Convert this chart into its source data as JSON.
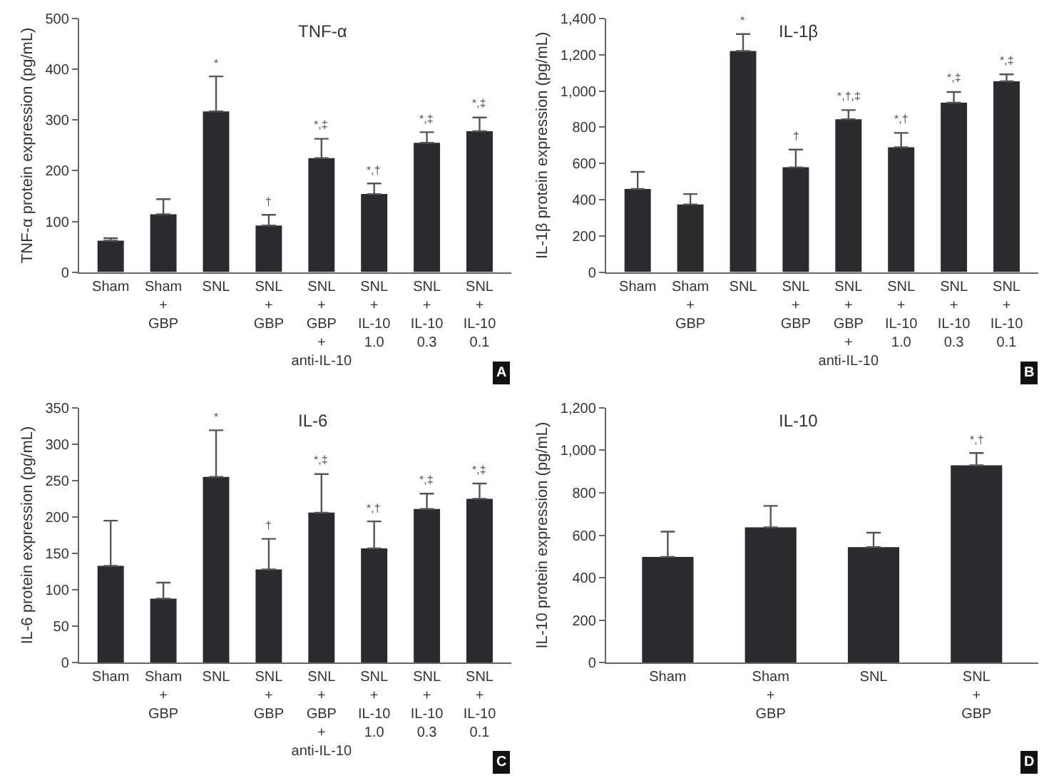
{
  "chart_data": [
    {
      "type": "bar",
      "title": "TNF-α",
      "ylabel": "TNF-α protein expression (pg/mL)",
      "categories": [
        "Sham",
        "Sham\n+\nGBP",
        "SNL",
        "SNL\n+\nGBP",
        "SNL\n+\nGBP\n+\nanti-IL-10",
        "SNL\n+\nIL-10\n1.0",
        "SNL\n+\nIL-10\n0.3",
        "SNL\n+\nIL-10\n0.1"
      ],
      "color": "#2b2b2e",
      "values": [
        62,
        114,
        317,
        92,
        225,
        154,
        255,
        278
      ],
      "errors": [
        [
          62,
          67
        ],
        [
          114,
          144
        ],
        [
          317,
          386
        ],
        [
          92,
          113
        ],
        [
          225,
          263
        ],
        [
          154,
          175
        ],
        [
          255,
          276
        ],
        [
          278,
          305
        ]
      ],
      "ylim": [
        0,
        500
      ],
      "yticks": [
        0,
        100,
        200,
        300,
        400,
        500
      ],
      "annotations": [
        "A",
        {
          "text": "*",
          "x": "SNL",
          "y": 386
        },
        {
          "text": "†",
          "x": "SNL\n+\nGBP",
          "y": 113
        },
        {
          "text": "*,‡",
          "x": "SNL\n+\nGBP\n+\nanti-IL-10",
          "y": 263
        },
        {
          "text": "*,†",
          "x": "SNL\n+\nIL-10\n1.0",
          "y": 175
        },
        {
          "text": "*,‡",
          "x": "SNL\n+\nIL-10\n0.3",
          "y": 276
        },
        {
          "text": "*,‡",
          "x": "SNL\n+\nIL-10\n0.1",
          "y": 305
        }
      ]
    },
    {
      "type": "bar",
      "title": "IL-1β",
      "ylabel": "IL-1β protein expression (pg/mL)",
      "categories": [
        "Sham",
        "Sham\n+\nGBP",
        "SNL",
        "SNL\n+\nGBP",
        "SNL\n+\nGBP\n+\nanti-IL-10",
        "SNL\n+\nIL-10\n1.0",
        "SNL\n+\nIL-10\n0.3",
        "SNL\n+\nIL-10\n0.1"
      ],
      "color": "#2b2b2e",
      "values": [
        459,
        374,
        1221,
        579,
        844,
        690,
        936,
        1054
      ],
      "errors": [
        [
          459,
          554
        ],
        [
          374,
          431
        ],
        [
          1221,
          1315
        ],
        [
          579,
          677
        ],
        [
          844,
          895
        ],
        [
          690,
          769
        ],
        [
          936,
          995
        ],
        [
          1054,
          1092
        ]
      ],
      "ylim": [
        0,
        1400
      ],
      "yticks": [
        0,
        200,
        400,
        600,
        800,
        {
          "value": 1000,
          "label": "1,000"
        },
        {
          "value": 1200,
          "label": "1,200"
        },
        {
          "value": 1400,
          "label": "1,400"
        }
      ],
      "annotations": [
        "B",
        {
          "text": "*",
          "x": "SNL",
          "y": 1315
        },
        {
          "text": "†",
          "x": "SNL\n+\nGBP",
          "y": 677
        },
        {
          "text": "*,†,‡",
          "x": "SNL\n+\nGBP\n+\nanti-IL-10",
          "y": 895
        },
        {
          "text": "*,†",
          "x": "SNL\n+\nIL-10\n1.0",
          "y": 769
        },
        {
          "text": "*,‡",
          "x": "SNL\n+\nIL-10\n0.3",
          "y": 995
        },
        {
          "text": "*,‡",
          "x": "SNL\n+\nIL-10\n0.1",
          "y": 1092
        }
      ]
    },
    {
      "type": "bar",
      "title": "IL-6",
      "ylabel": "IL-6 protein expression (pg/mL)",
      "categories": [
        "Sham",
        "Sham\n+\nGBP",
        "SNL",
        "SNL\n+\nGBP",
        "SNL\n+\nGBP\n+\nanti-IL-10",
        "SNL\n+\nIL-10\n1.0",
        "SNL\n+\nIL-10\n0.3",
        "SNL\n+\nIL-10\n0.1"
      ],
      "color": "#2b2b2e",
      "values": [
        133,
        88,
        255,
        128,
        206,
        157,
        211,
        225
      ],
      "errors": [
        [
          133,
          195
        ],
        [
          88,
          110
        ],
        [
          255,
          319
        ],
        [
          128,
          170
        ],
        [
          206,
          259
        ],
        [
          157,
          194
        ],
        [
          211,
          232
        ],
        [
          225,
          246
        ]
      ],
      "ylim": [
        0,
        350
      ],
      "yticks": [
        0,
        50,
        100,
        150,
        200,
        250,
        300,
        350
      ],
      "annotations": [
        "C",
        {
          "text": "*",
          "x": "SNL",
          "y": 319
        },
        {
          "text": "†",
          "x": "SNL\n+\nGBP",
          "y": 170
        },
        {
          "text": "*,‡",
          "x": "SNL\n+\nGBP\n+\nanti-IL-10",
          "y": 259
        },
        {
          "text": "*,†",
          "x": "SNL\n+\nIL-10\n1.0",
          "y": 194
        },
        {
          "text": "*,‡",
          "x": "SNL\n+\nIL-10\n0.3",
          "y": 232
        },
        {
          "text": "*,‡",
          "x": "SNL\n+\nIL-10\n0.1",
          "y": 246
        }
      ]
    },
    {
      "type": "bar",
      "title": "IL-10",
      "ylabel": "IL-10 protein expression (pg/mL)",
      "categories": [
        "Sham",
        "Sham\n+\nGBP",
        "SNL",
        "SNL\n+\nGBP"
      ],
      "color": "#2b2b2e",
      "values": [
        498,
        637,
        544,
        929
      ],
      "errors": [
        [
          498,
          617
        ],
        [
          637,
          738
        ],
        [
          544,
          612
        ],
        [
          929,
          987
        ]
      ],
      "ylim": [
        0,
        1200
      ],
      "yticks": [
        0,
        200,
        400,
        600,
        800,
        {
          "value": 1000,
          "label": "1,000"
        },
        {
          "value": 1200,
          "label": "1,200"
        }
      ],
      "annotations": [
        "D",
        {
          "text": "*,†",
          "x": "SNL\n+\nGBP",
          "y": 987
        }
      ]
    }
  ]
}
